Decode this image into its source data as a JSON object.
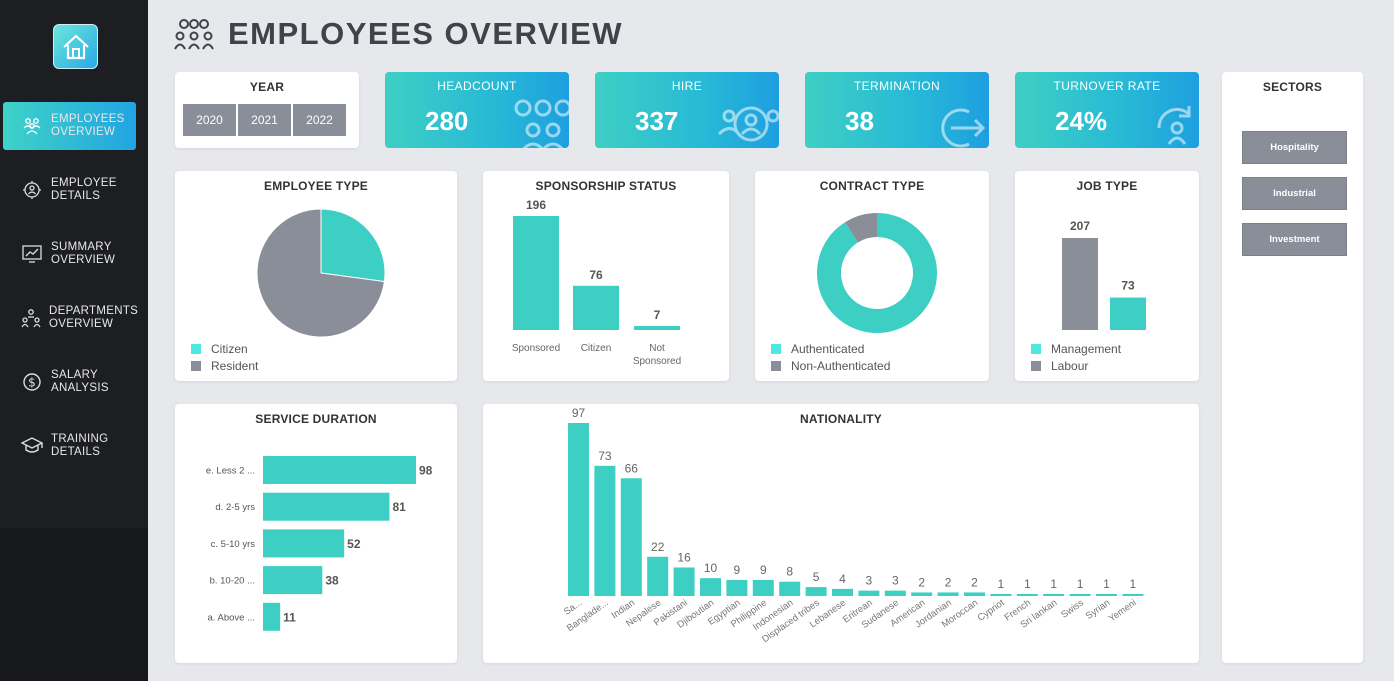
{
  "header": {
    "title": "EMPLOYEES OVERVIEW"
  },
  "sidebar": {
    "items": [
      {
        "label": "EMPLOYEES\nOVERVIEW",
        "active": true
      },
      {
        "label": "EMPLOYEE\nDETAILS"
      },
      {
        "label": "SUMMARY\nOVERVIEW"
      },
      {
        "label": "DEPARTMENTS\nOVERVIEW"
      },
      {
        "label": "SALARY\nANALYSIS"
      },
      {
        "label": "TRAINING\nDETAILS"
      }
    ]
  },
  "year_filter": {
    "title": "YEAR",
    "options": [
      "2020",
      "2021",
      "2022"
    ]
  },
  "kpis": [
    {
      "label": "HEADCOUNT",
      "value": "280",
      "icon": "people-group-icon"
    },
    {
      "label": "HIRE",
      "value": "337",
      "icon": "hire-person-icon"
    },
    {
      "label": "TERMINATION",
      "value": "38",
      "icon": "exit-arrow-icon"
    },
    {
      "label": "TURNOVER RATE",
      "value": "24%",
      "icon": "turnover-cycle-icon"
    }
  ],
  "sectors": {
    "title": "SECTORS",
    "options": [
      "Hospitality",
      "Industrial",
      "Investment"
    ]
  },
  "colors": {
    "teal": "#3ecfc4",
    "gray": "#898e98",
    "legend_teal": "#4de8e0"
  },
  "chart_data": [
    {
      "type": "pie",
      "title": "EMPLOYEE TYPE",
      "categories": [
        "Citizen",
        "Resident"
      ],
      "values": [
        76,
        204
      ],
      "colors": [
        "#3ecfc4",
        "#898e98"
      ]
    },
    {
      "type": "bar",
      "title": "SPONSORSHIP STATUS",
      "categories": [
        "Sponsored",
        "Citizen",
        "Not Sponsored"
      ],
      "values": [
        196,
        76,
        7
      ]
    },
    {
      "type": "pie",
      "title": "CONTRACT TYPE",
      "categories": [
        "Authenticated",
        "Non-Authenticated"
      ],
      "values": [
        255,
        25
      ],
      "colors": [
        "#3ecfc4",
        "#898e98"
      ]
    },
    {
      "type": "bar",
      "title": "JOB TYPE",
      "categories": [
        "Management",
        "Labour"
      ],
      "values": [
        207,
        73
      ],
      "colors": [
        "#898e98",
        "#3ecfc4"
      ]
    },
    {
      "type": "bar",
      "title": "SERVICE DURATION",
      "orientation": "horizontal",
      "categories": [
        "e. Less 2 ...",
        "d. 2-5 yrs",
        "c. 5-10 yrs",
        "b. 10-20 ...",
        "a. Above ..."
      ],
      "values": [
        98,
        81,
        52,
        38,
        11
      ]
    },
    {
      "type": "bar",
      "title": "NATIONALITY",
      "categories": [
        "Sa...",
        "Banglade...",
        "Indian",
        "Nepalese",
        "Pakistani",
        "Djiboutian",
        "Egyptian",
        "Philippine",
        "Indonesian",
        "Displaced tribes",
        "Lebanese",
        "Eritrean",
        "Sudanese",
        "American",
        "Jordanian",
        "Moroccan",
        "Cypriot",
        "French",
        "Sri lankan",
        "Swiss",
        "Syrian",
        "Yemeni"
      ],
      "values": [
        97,
        73,
        66,
        22,
        16,
        10,
        9,
        9,
        8,
        5,
        4,
        3,
        3,
        2,
        2,
        2,
        1,
        1,
        1,
        1,
        1,
        1
      ]
    }
  ]
}
